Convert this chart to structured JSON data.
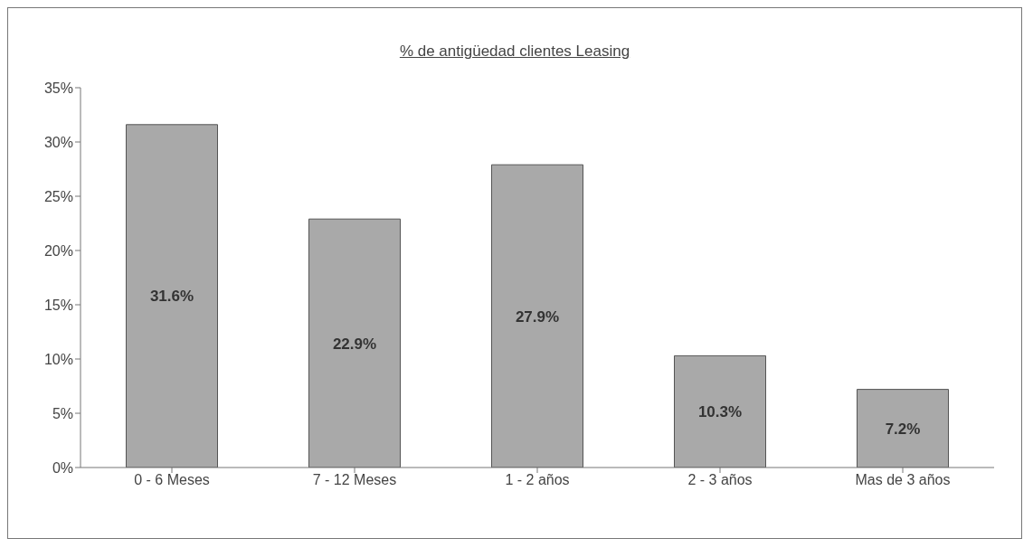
{
  "chart_data": {
    "type": "bar",
    "title": "% de antigüedad clientes Leasing",
    "categories": [
      "0 - 6 Meses",
      "7 - 12 Meses",
      "1 - 2 años",
      "2 - 3 años",
      "Mas de 3 años"
    ],
    "values": [
      31.6,
      22.9,
      27.9,
      10.3,
      7.2
    ],
    "value_labels": [
      "31.6%",
      "22.9%",
      "27.9%",
      "10.3%",
      "7.2%"
    ],
    "color": "#a9a9a9",
    "ylim": [
      0,
      35
    ],
    "yticks": [
      {
        "value": 0,
        "label": "0%"
      },
      {
        "value": 5,
        "label": "5%"
      },
      {
        "value": 10,
        "label": "10%"
      },
      {
        "value": 15,
        "label": "15%"
      },
      {
        "value": 20,
        "label": "20%"
      },
      {
        "value": 25,
        "label": "25%"
      },
      {
        "value": 30,
        "label": "30%"
      },
      {
        "value": 35,
        "label": "35%"
      }
    ],
    "grid": false,
    "legend": false
  }
}
